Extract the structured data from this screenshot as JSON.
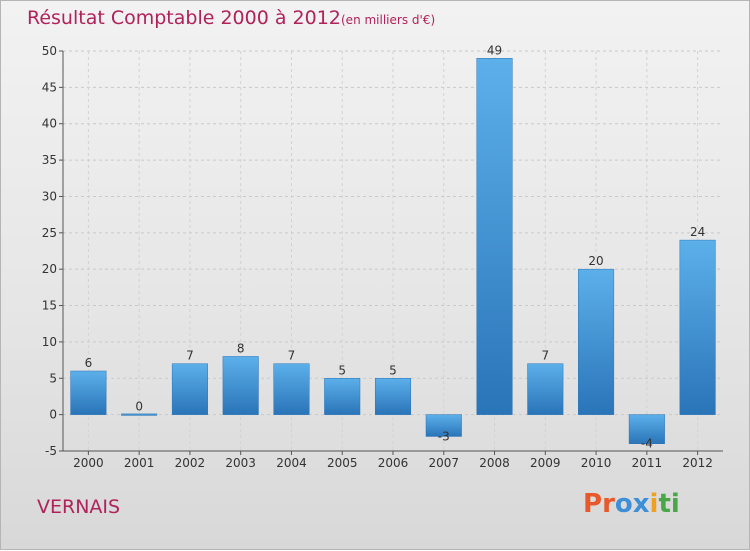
{
  "chart_data": {
    "type": "bar",
    "title": "Résultat Comptable 2000 à 2012",
    "subtitle": "(en milliers d'€)",
    "categories": [
      "2000",
      "2001",
      "2002",
      "2003",
      "2004",
      "2005",
      "2006",
      "2007",
      "2008",
      "2009",
      "2010",
      "2011",
      "2012"
    ],
    "values": [
      6,
      0,
      7,
      8,
      7,
      5,
      5,
      -3,
      49,
      7,
      20,
      -4,
      24
    ],
    "value_labels": [
      "6",
      "0",
      "7",
      "8",
      "7",
      "5",
      "5",
      "-3",
      "49",
      "7",
      "20",
      "-4",
      "24"
    ],
    "ylim": [
      -5,
      50
    ],
    "yticks": [
      -5,
      0,
      5,
      10,
      15,
      20,
      25,
      30,
      35,
      40,
      45,
      50
    ],
    "xlabel": "",
    "ylabel": "",
    "bar_color": "#3a8fd6",
    "bar_color_light": "#5cb0ea",
    "bar_color_dark": "#2a74b8"
  },
  "footer": {
    "place": "VERNAIS"
  },
  "logo": {
    "letters": [
      "P",
      "r",
      "o",
      "x",
      "i",
      "t",
      "i"
    ],
    "colors": [
      "#e8582a",
      "#e8582a",
      "#3d8fd8",
      "#3d8fd8",
      "#f0a020",
      "#48a848",
      "#48a848"
    ]
  }
}
